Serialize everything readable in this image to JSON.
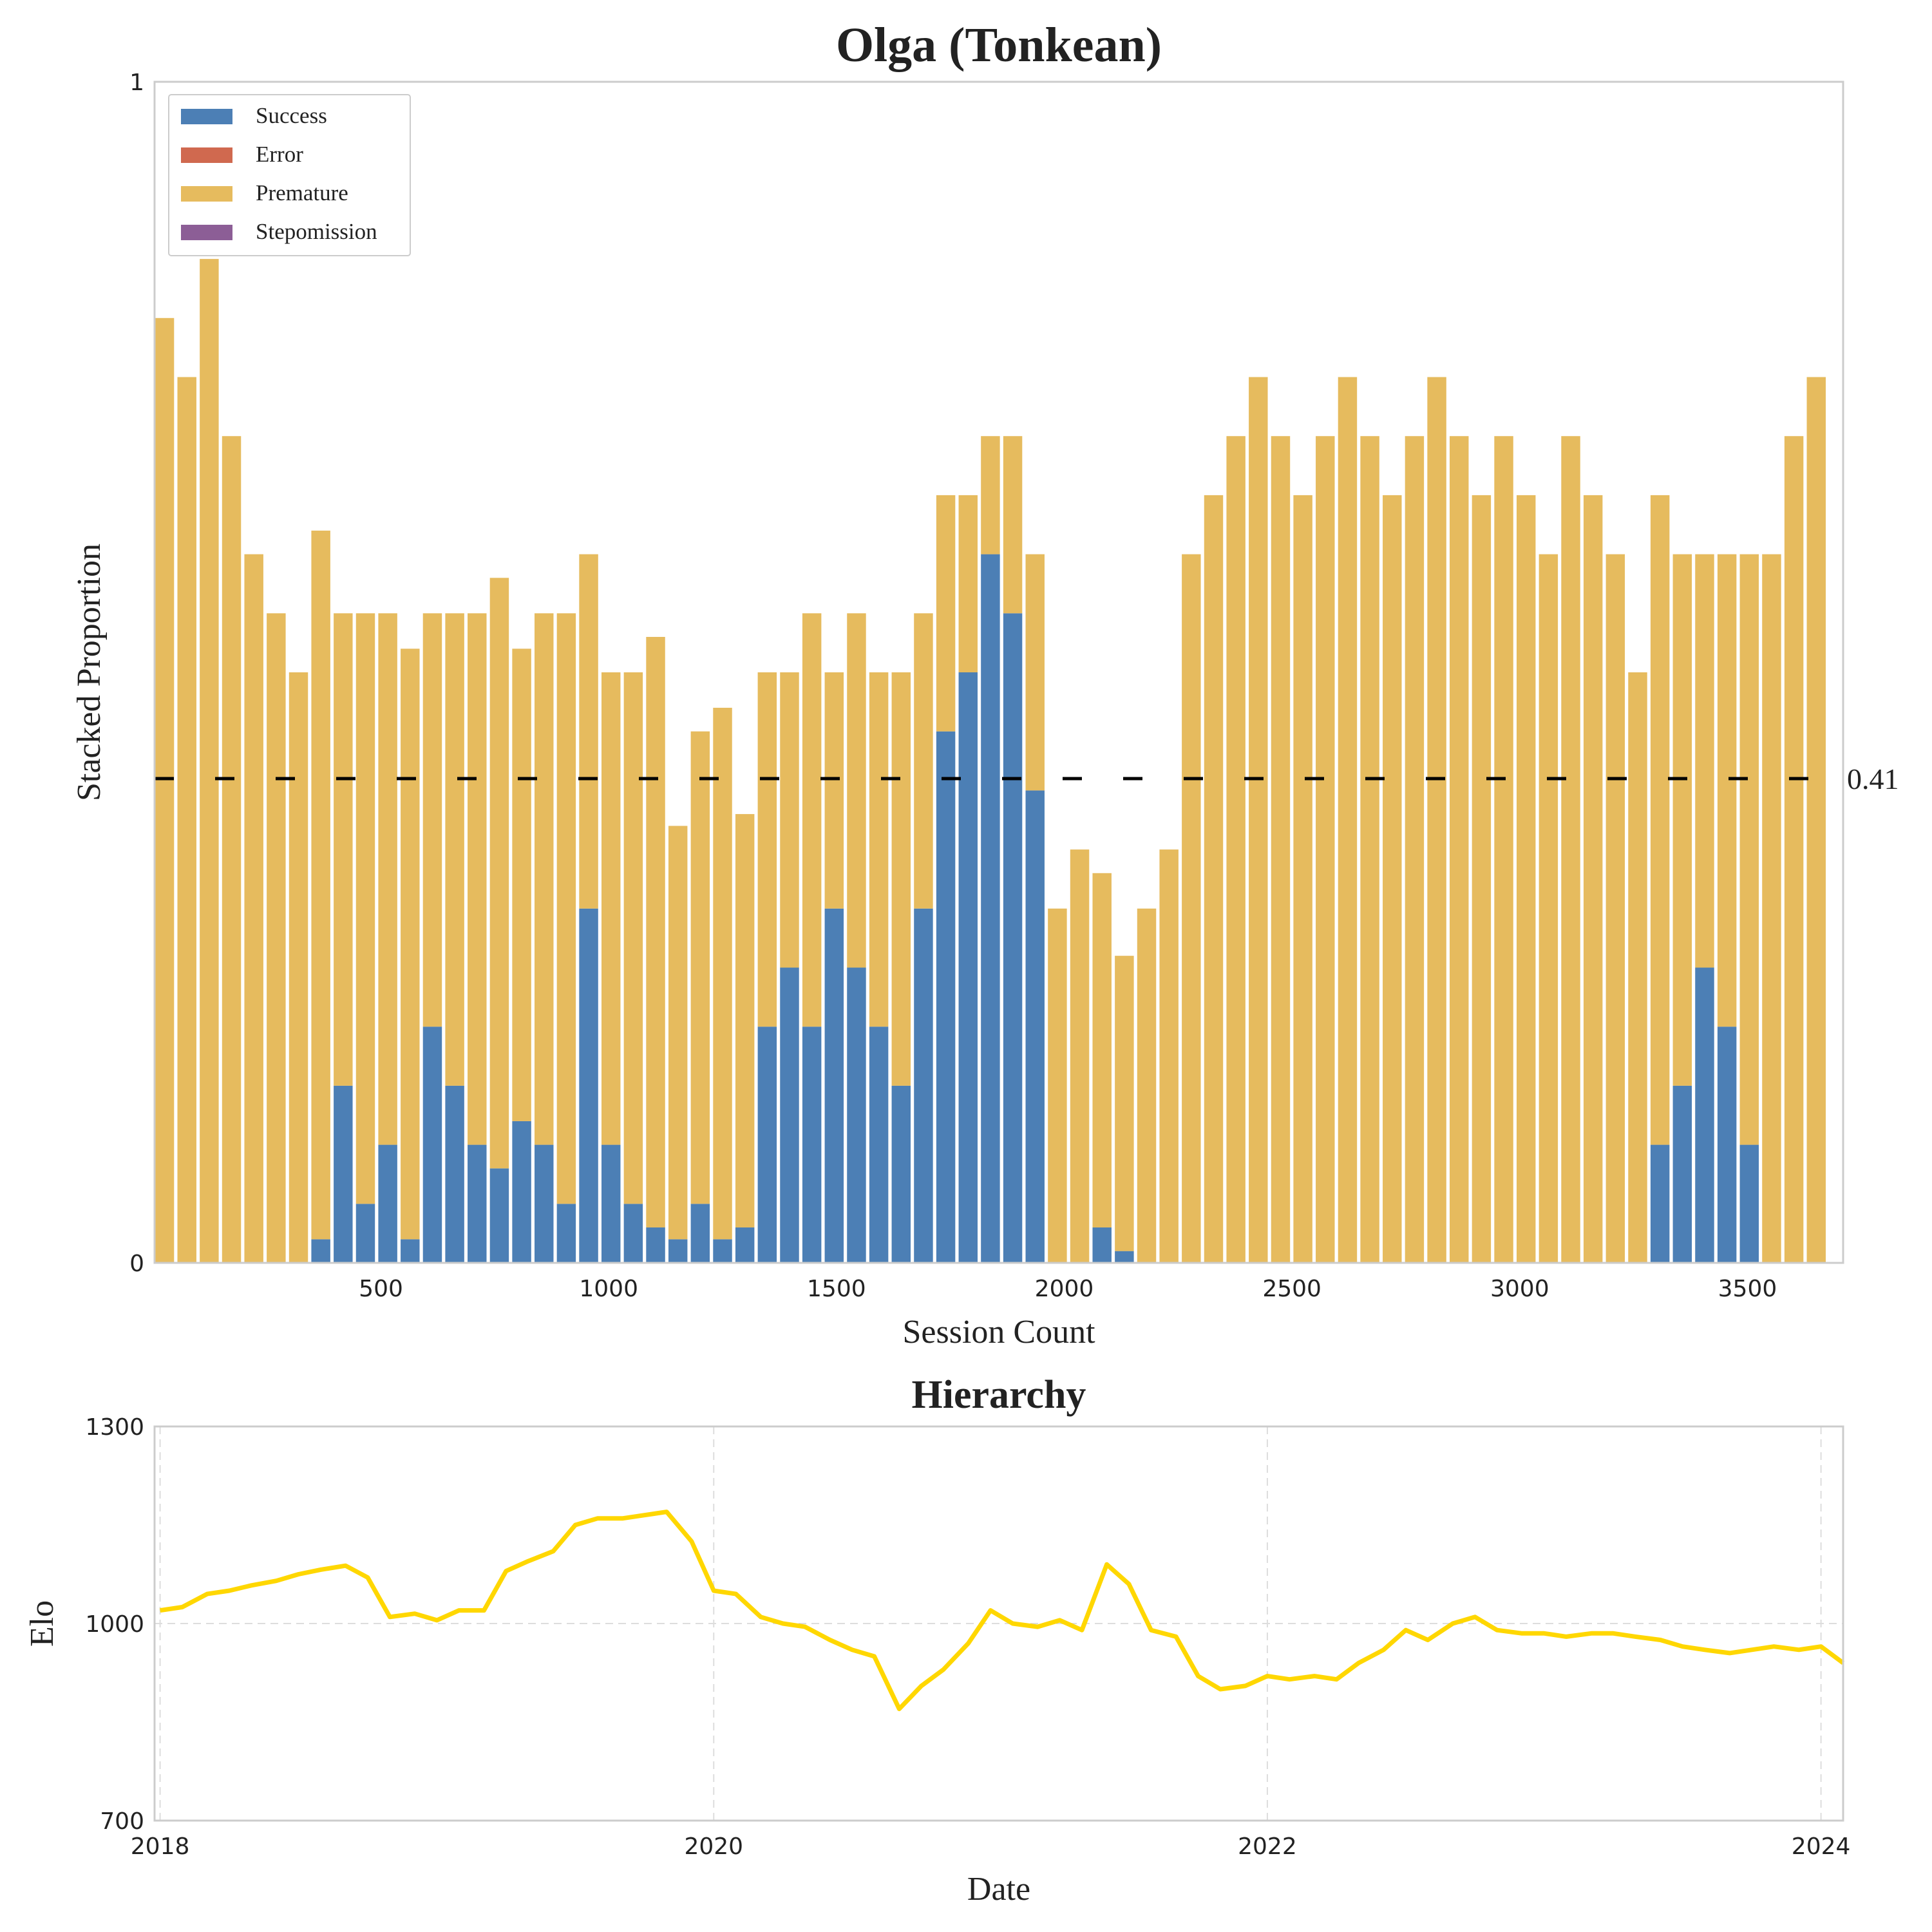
{
  "chart_data": [
    {
      "type": "bar",
      "stacked": true,
      "title": "Olga (Tonkean)",
      "xlabel": "Session Count",
      "ylabel": "Stacked Proportion",
      "x": [
        25,
        74,
        123,
        172,
        221,
        270,
        319,
        368,
        417,
        466,
        515,
        564,
        613,
        662,
        711,
        760,
        809,
        858,
        907,
        956,
        1005,
        1054,
        1103,
        1152,
        1201,
        1250,
        1299,
        1348,
        1397,
        1446,
        1495,
        1544,
        1593,
        1642,
        1691,
        1740,
        1789,
        1838,
        1887,
        1936,
        1985,
        2034,
        2083,
        2132,
        2181,
        2230,
        2279,
        2328,
        2377,
        2426,
        2475,
        2524,
        2573,
        2622,
        2671,
        2720,
        2769,
        2818,
        2867,
        2916,
        2965,
        3014,
        3063,
        3112,
        3161,
        3210,
        3259,
        3308,
        3357,
        3406,
        3455,
        3504,
        3553,
        3602,
        3651
      ],
      "series": [
        {
          "name": "Success",
          "color": "#4c7fb5",
          "values": [
            0,
            0,
            0,
            0,
            0,
            0,
            0,
            0.02,
            0.15,
            0.05,
            0.1,
            0.02,
            0.2,
            0.15,
            0.1,
            0.08,
            0.12,
            0.1,
            0.05,
            0.3,
            0.1,
            0.05,
            0.03,
            0.02,
            0.05,
            0.02,
            0.03,
            0.2,
            0.25,
            0.2,
            0.3,
            0.25,
            0.2,
            0.15,
            0.3,
            0.45,
            0.5,
            0.6,
            0.55,
            0.4,
            0,
            0,
            0.03,
            0.01,
            0,
            0,
            0,
            0,
            0,
            0,
            0,
            0,
            0,
            0,
            0,
            0,
            0,
            0,
            0,
            0,
            0,
            0,
            0,
            0,
            0,
            0,
            0,
            0.1,
            0.15,
            0.25,
            0.2,
            0.1,
            0,
            0,
            0
          ]
        },
        {
          "name": "Error",
          "color": "#d0694f",
          "values": [
            0,
            0,
            0,
            0,
            0,
            0,
            0,
            0,
            0,
            0,
            0,
            0,
            0,
            0,
            0,
            0,
            0,
            0,
            0,
            0,
            0,
            0,
            0,
            0,
            0,
            0,
            0,
            0,
            0,
            0,
            0,
            0,
            0,
            0,
            0,
            0,
            0,
            0,
            0,
            0,
            0,
            0,
            0,
            0,
            0,
            0,
            0,
            0,
            0,
            0,
            0,
            0,
            0,
            0,
            0,
            0,
            0,
            0,
            0,
            0,
            0,
            0,
            0,
            0,
            0,
            0,
            0,
            0,
            0,
            0,
            0,
            0,
            0,
            0,
            0
          ]
        },
        {
          "name": "Premature",
          "color": "#e6bb5e",
          "values": [
            0.8,
            0.75,
            0.85,
            0.7,
            0.6,
            0.55,
            0.5,
            0.6,
            0.4,
            0.5,
            0.45,
            0.5,
            0.35,
            0.4,
            0.45,
            0.5,
            0.4,
            0.45,
            0.5,
            0.3,
            0.4,
            0.45,
            0.5,
            0.35,
            0.4,
            0.45,
            0.35,
            0.3,
            0.25,
            0.35,
            0.2,
            0.3,
            0.3,
            0.35,
            0.25,
            0.2,
            0.15,
            0.1,
            0.15,
            0.2,
            0.3,
            0.35,
            0.3,
            0.25,
            0.3,
            0.35,
            0.6,
            0.65,
            0.7,
            0.75,
            0.7,
            0.65,
            0.7,
            0.75,
            0.7,
            0.65,
            0.7,
            0.75,
            0.7,
            0.65,
            0.7,
            0.65,
            0.6,
            0.7,
            0.65,
            0.6,
            0.5,
            0.55,
            0.45,
            0.35,
            0.4,
            0.5,
            0.6,
            0.7,
            0.75
          ]
        },
        {
          "name": "Stepomission",
          "color": "#8c5e96",
          "values": [
            0,
            0,
            0,
            0,
            0,
            0,
            0,
            0,
            0,
            0,
            0,
            0,
            0,
            0,
            0,
            0,
            0,
            0,
            0,
            0,
            0,
            0,
            0,
            0,
            0,
            0,
            0,
            0,
            0,
            0,
            0,
            0,
            0,
            0,
            0,
            0,
            0,
            0,
            0,
            0,
            0,
            0,
            0,
            0,
            0,
            0,
            0,
            0,
            0,
            0,
            0,
            0,
            0,
            0,
            0,
            0,
            0,
            0,
            0,
            0,
            0,
            0,
            0,
            0,
            0,
            0,
            0,
            0,
            0,
            0,
            0,
            0,
            0,
            0,
            0
          ]
        }
      ],
      "xlim": [
        3,
        3710
      ],
      "xticks": [
        500,
        1000,
        1500,
        2000,
        2500,
        3000,
        3500
      ],
      "ylim": [
        0,
        1
      ],
      "yticks": [
        0,
        1
      ],
      "hline": 0.41,
      "hline_color": "#000000",
      "legend": "upper left",
      "grid": false
    },
    {
      "type": "line",
      "title": "Hierarchy",
      "xlabel": "Date",
      "ylabel": "Elo",
      "color": "#ffd700",
      "x": [
        2018,
        2018.08,
        2018.17,
        2018.25,
        2018.33,
        2018.42,
        2018.5,
        2018.58,
        2018.67,
        2018.75,
        2018.83,
        2018.92,
        2019,
        2019.08,
        2019.17,
        2019.25,
        2019.33,
        2019.42,
        2019.5,
        2019.58,
        2019.67,
        2019.75,
        2019.83,
        2019.92,
        2020,
        2020.08,
        2020.17,
        2020.25,
        2020.33,
        2020.42,
        2020.5,
        2020.58,
        2020.67,
        2020.75,
        2020.83,
        2020.92,
        2021,
        2021.08,
        2021.17,
        2021.25,
        2021.33,
        2021.42,
        2021.5,
        2021.58,
        2021.67,
        2021.75,
        2021.83,
        2021.92,
        2022,
        2022.08,
        2022.17,
        2022.25,
        2022.33,
        2022.42,
        2022.5,
        2022.58,
        2022.67,
        2022.75,
        2022.83,
        2022.92,
        2023,
        2023.08,
        2023.17,
        2023.25,
        2023.33,
        2023.42,
        2023.5,
        2023.58,
        2023.67,
        2023.75,
        2023.83,
        2023.92,
        2024,
        2024.08
      ],
      "values": [
        1020,
        1025,
        1045,
        1050,
        1058,
        1065,
        1075,
        1082,
        1088,
        1070,
        1010,
        1015,
        1005,
        1020,
        1020,
        1080,
        1095,
        1110,
        1150,
        1160,
        1160,
        1165,
        1170,
        1125,
        1050,
        1045,
        1010,
        1000,
        995,
        975,
        960,
        950,
        870,
        905,
        930,
        970,
        1020,
        1000,
        995,
        1005,
        990,
        1090,
        1060,
        990,
        980,
        920,
        900,
        905,
        920,
        915,
        920,
        915,
        940,
        960,
        990,
        975,
        1000,
        1010,
        990,
        985,
        985,
        980,
        985,
        985,
        980,
        975,
        965,
        960,
        955,
        960,
        965,
        960,
        965,
        940
      ],
      "xlim": [
        2017.98,
        2024.08
      ],
      "xticks": [
        2018,
        2020,
        2022,
        2024
      ],
      "ylim": [
        700,
        1300
      ],
      "yticks": [
        700,
        1000,
        1300
      ],
      "grid": true
    }
  ]
}
